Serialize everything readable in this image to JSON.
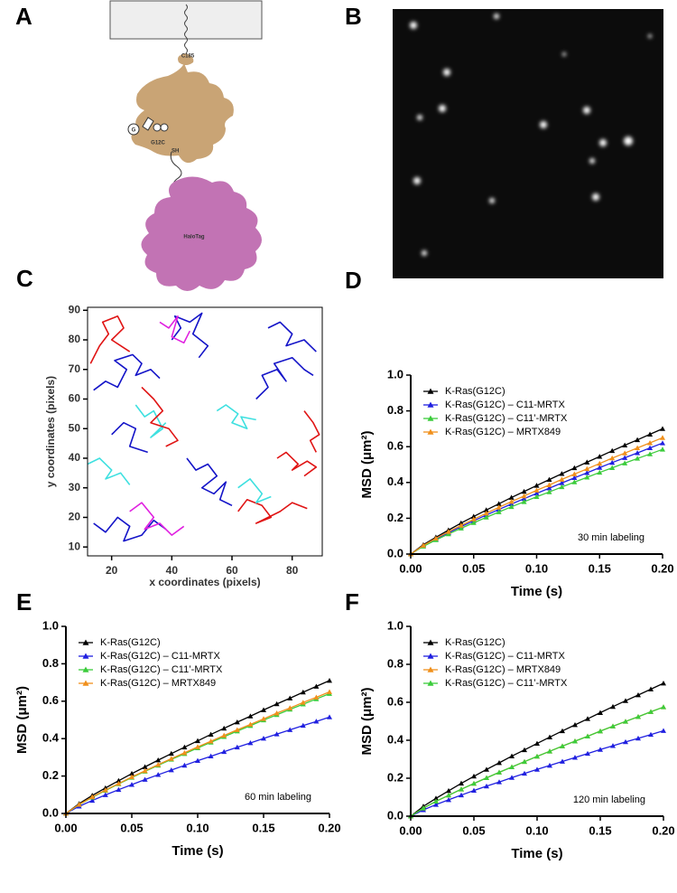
{
  "diagram": {
    "panel": "A",
    "anchor": "C185",
    "mutation": "G12C",
    "thiol": "SH",
    "ligand": "G",
    "tag": "HaloTag"
  },
  "image": {
    "panel": "B"
  },
  "chart_data": [
    {
      "type": "trajectories",
      "panel": "C",
      "xlabel": "x coordinates (pixels)",
      "ylabel": "y coordinates (pixels)",
      "xlim": [
        12,
        90
      ],
      "ylim": [
        7,
        91
      ],
      "xticks": [
        20,
        40,
        60,
        80
      ],
      "yticks": [
        10,
        20,
        30,
        40,
        50,
        60,
        70,
        80,
        90
      ],
      "series": [
        {
          "color": "#1414c8",
          "x": [
            14,
            18,
            22,
            25,
            21,
            27,
            30,
            28,
            33,
            36
          ],
          "y": [
            63,
            66,
            64,
            70,
            73,
            75,
            72,
            68,
            70,
            67
          ]
        },
        {
          "color": "#e01414",
          "x": [
            13,
            16,
            19,
            17,
            22,
            24,
            20,
            26
          ],
          "y": [
            72,
            78,
            82,
            86,
            88,
            84,
            80,
            76
          ]
        },
        {
          "color": "#1414c8",
          "x": [
            40,
            43,
            41,
            46,
            50,
            47,
            52,
            49
          ],
          "y": [
            80,
            84,
            88,
            86,
            89,
            82,
            78,
            74
          ]
        },
        {
          "color": "#3ee0e0",
          "x": [
            55,
            58,
            62,
            60,
            65,
            63,
            68
          ],
          "y": [
            56,
            58,
            55,
            52,
            50,
            54,
            53
          ]
        },
        {
          "color": "#1414c8",
          "x": [
            45,
            48,
            52,
            55,
            50,
            54,
            58,
            56,
            60
          ],
          "y": [
            40,
            36,
            38,
            34,
            30,
            28,
            32,
            26,
            24
          ]
        },
        {
          "color": "#e01414",
          "x": [
            75,
            78,
            82,
            80,
            85,
            88,
            84
          ],
          "y": [
            40,
            42,
            38,
            36,
            39,
            37,
            34
          ]
        },
        {
          "color": "#e020e0",
          "x": [
            36,
            39,
            42,
            40,
            44,
            46
          ],
          "y": [
            86,
            84,
            88,
            81,
            79,
            83
          ]
        },
        {
          "color": "#3ee0e0",
          "x": [
            12,
            16,
            20,
            18,
            23,
            26
          ],
          "y": [
            38,
            40,
            36,
            33,
            35,
            31
          ]
        },
        {
          "color": "#1414c8",
          "x": [
            14,
            18,
            22,
            26,
            24,
            30,
            34,
            38
          ],
          "y": [
            18,
            15,
            20,
            17,
            12,
            14,
            19,
            16
          ]
        },
        {
          "color": "#e01414",
          "x": [
            62,
            65,
            70,
            73,
            68,
            76,
            80,
            85
          ],
          "y": [
            22,
            26,
            24,
            20,
            18,
            22,
            25,
            23
          ]
        },
        {
          "color": "#e020e0",
          "x": [
            26,
            30,
            34,
            31,
            36,
            40,
            44
          ],
          "y": [
            22,
            25,
            20,
            16,
            18,
            14,
            17
          ]
        },
        {
          "color": "#1414c8",
          "x": [
            68,
            72,
            70,
            75,
            78,
            74,
            80,
            84,
            87
          ],
          "y": [
            60,
            64,
            68,
            70,
            66,
            72,
            74,
            70,
            68
          ]
        },
        {
          "color": "#3ee0e0",
          "x": [
            28,
            31,
            34,
            37,
            33,
            38
          ],
          "y": [
            58,
            54,
            56,
            50,
            47,
            52
          ]
        },
        {
          "color": "#e01414",
          "x": [
            30,
            34,
            37,
            33,
            39,
            42,
            38
          ],
          "y": [
            64,
            60,
            56,
            52,
            50,
            46,
            44
          ]
        },
        {
          "color": "#1414c8",
          "x": [
            72,
            76,
            80,
            78,
            84,
            88
          ],
          "y": [
            84,
            86,
            82,
            78,
            80,
            76
          ]
        },
        {
          "color": "#1414c8",
          "x": [
            20,
            24,
            28,
            26,
            32
          ],
          "y": [
            48,
            52,
            50,
            44,
            42
          ]
        },
        {
          "color": "#e01414",
          "x": [
            84,
            87,
            89,
            86,
            88
          ],
          "y": [
            56,
            52,
            48,
            46,
            42
          ]
        },
        {
          "color": "#3ee0e0",
          "x": [
            62,
            66,
            70,
            68,
            73
          ],
          "y": [
            30,
            33,
            28,
            25,
            27
          ]
        }
      ]
    },
    {
      "type": "line",
      "panel": "D",
      "annotation": "30 min labeling",
      "xlabel": "Time (s)",
      "ylabel": "MSD (μm²)",
      "xlim": [
        0,
        0.2
      ],
      "ylim": [
        0,
        1
      ],
      "xticks": [
        {
          "value": 0,
          "label": "0.00"
        },
        0.05,
        {
          "value": 0.1,
          "label": "0.10"
        },
        0.15,
        {
          "value": 0.2,
          "label": "0.20"
        }
      ],
      "yticks": [
        {
          "value": 0,
          "label": "0.0"
        },
        0.2,
        0.4,
        0.6,
        0.8,
        {
          "value": 1,
          "label": "1.0"
        }
      ],
      "x": [
        0,
        0.01,
        0.02,
        0.03,
        0.04,
        0.05,
        0.06,
        0.07,
        0.08,
        0.09,
        0.1,
        0.11,
        0.12,
        0.13,
        0.14,
        0.15,
        0.16,
        0.17,
        0.18,
        0.19,
        0.2
      ],
      "series": [
        {
          "name": "K-Ras(G12C)",
          "color": "#000000",
          "values": [
            0,
            0.052,
            0.094,
            0.134,
            0.173,
            0.21,
            0.246,
            0.281,
            0.316,
            0.349,
            0.383,
            0.416,
            0.449,
            0.481,
            0.513,
            0.545,
            0.577,
            0.608,
            0.638,
            0.669,
            0.7
          ]
        },
        {
          "name": "K-Ras(G12C) – C11-MRTX",
          "color": "#2020e0",
          "values": [
            0,
            0.046,
            0.084,
            0.119,
            0.153,
            0.186,
            0.218,
            0.249,
            0.28,
            0.309,
            0.339,
            0.368,
            0.397,
            0.426,
            0.454,
            0.483,
            0.511,
            0.538,
            0.565,
            0.593,
            0.62
          ]
        },
        {
          "name": "K-Ras(G12C) – C11’-MRTX",
          "color": "#3ccc3c",
          "values": [
            0,
            0.043,
            0.079,
            0.112,
            0.144,
            0.175,
            0.205,
            0.235,
            0.264,
            0.292,
            0.32,
            0.347,
            0.375,
            0.402,
            0.429,
            0.456,
            0.482,
            0.508,
            0.534,
            0.559,
            0.585
          ]
        },
        {
          "name": "K-Ras(G12C) – MRTX849",
          "color": "#f0901c",
          "values": [
            0,
            0.048,
            0.088,
            0.125,
            0.16,
            0.195,
            0.228,
            0.261,
            0.293,
            0.324,
            0.356,
            0.386,
            0.417,
            0.447,
            0.476,
            0.506,
            0.536,
            0.564,
            0.593,
            0.621,
            0.65
          ]
        }
      ]
    },
    {
      "type": "line",
      "panel": "E",
      "annotation": "60 min labeling",
      "xlabel": "Time (s)",
      "ylabel": "MSD (μm²)",
      "xlim": [
        0,
        0.2
      ],
      "ylim": [
        0,
        1
      ],
      "xticks": [
        {
          "value": 0,
          "label": "0.00"
        },
        0.05,
        {
          "value": 0.1,
          "label": "0.10"
        },
        0.15,
        {
          "value": 0.2,
          "label": "0.20"
        }
      ],
      "yticks": [
        {
          "value": 0,
          "label": "0.0"
        },
        0.2,
        0.4,
        0.6,
        0.8,
        {
          "value": 1,
          "label": "1.0"
        }
      ],
      "x": [
        0,
        0.01,
        0.02,
        0.03,
        0.04,
        0.05,
        0.06,
        0.07,
        0.08,
        0.09,
        0.1,
        0.11,
        0.12,
        0.13,
        0.14,
        0.15,
        0.16,
        0.17,
        0.18,
        0.19,
        0.2
      ],
      "series": [
        {
          "name": "K-Ras(G12C)",
          "color": "#000000",
          "values": [
            0,
            0.052,
            0.096,
            0.136,
            0.175,
            0.213,
            0.249,
            0.285,
            0.32,
            0.354,
            0.388,
            0.422,
            0.455,
            0.488,
            0.52,
            0.553,
            0.585,
            0.616,
            0.648,
            0.679,
            0.71
          ]
        },
        {
          "name": "K-Ras(G12C) – C11-MRTX",
          "color": "#2020e0",
          "values": [
            0,
            0.038,
            0.069,
            0.099,
            0.127,
            0.154,
            0.181,
            0.207,
            0.232,
            0.257,
            0.282,
            0.306,
            0.33,
            0.354,
            0.377,
            0.401,
            0.424,
            0.447,
            0.47,
            0.492,
            0.515
          ]
        },
        {
          "name": "K-Ras(G12C) – C11’-MRTX",
          "color": "#3ccc3c",
          "values": [
            0,
            0.047,
            0.086,
            0.123,
            0.158,
            0.192,
            0.225,
            0.257,
            0.289,
            0.319,
            0.35,
            0.38,
            0.41,
            0.44,
            0.469,
            0.499,
            0.527,
            0.556,
            0.584,
            0.612,
            0.64
          ]
        },
        {
          "name": "K-Ras(G12C) – MRTX849",
          "color": "#f0901c",
          "values": [
            0,
            0.048,
            0.088,
            0.125,
            0.16,
            0.195,
            0.228,
            0.261,
            0.293,
            0.324,
            0.356,
            0.386,
            0.417,
            0.447,
            0.476,
            0.506,
            0.536,
            0.564,
            0.593,
            0.621,
            0.65
          ]
        }
      ]
    },
    {
      "type": "line",
      "panel": "F",
      "annotation": "120 min labeling",
      "xlabel": "Time (s)",
      "ylabel": "MSD (μm²)",
      "xlim": [
        0,
        0.2
      ],
      "ylim": [
        0,
        1
      ],
      "xticks": [
        {
          "value": 0,
          "label": "0.00"
        },
        0.05,
        {
          "value": 0.1,
          "label": "0.10"
        },
        0.15,
        {
          "value": 0.2,
          "label": "0.20"
        }
      ],
      "yticks": [
        {
          "value": 0,
          "label": "0.0"
        },
        0.2,
        0.4,
        0.6,
        0.8,
        {
          "value": 1,
          "label": "1.0"
        }
      ],
      "x": [
        0,
        0.01,
        0.02,
        0.03,
        0.04,
        0.05,
        0.06,
        0.07,
        0.08,
        0.09,
        0.1,
        0.11,
        0.12,
        0.13,
        0.14,
        0.15,
        0.16,
        0.17,
        0.18,
        0.19,
        0.2
      ],
      "series": [
        {
          "name": "K-Ras(G12C)",
          "color": "#000000",
          "values": [
            0,
            0.052,
            0.094,
            0.134,
            0.173,
            0.21,
            0.246,
            0.281,
            0.316,
            0.349,
            0.383,
            0.416,
            0.449,
            0.481,
            0.513,
            0.545,
            0.577,
            0.608,
            0.638,
            0.669,
            0.7
          ]
        },
        {
          "name": "K-Ras(G12C) – C11-MRTX",
          "color": "#2020e0",
          "values": [
            0,
            0.033,
            0.061,
            0.086,
            0.111,
            0.135,
            0.158,
            0.18,
            0.203,
            0.225,
            0.246,
            0.267,
            0.288,
            0.309,
            0.33,
            0.351,
            0.371,
            0.391,
            0.41,
            0.43,
            0.45
          ]
        },
        {
          "name": "K-Ras(G12C) – MRTX849",
          "color": "#f0901c",
          "values": [
            0,
            0.042,
            0.078,
            0.11,
            0.142,
            0.172,
            0.202,
            0.231,
            0.259,
            0.287,
            0.315,
            0.342,
            0.369,
            0.395,
            0.421,
            0.448,
            0.474,
            0.499,
            0.524,
            0.55,
            0.575
          ]
        },
        {
          "name": "K-Ras(G12C) – C11’-MRTX",
          "color": "#3ccc3c",
          "values": [
            0,
            0.042,
            0.078,
            0.11,
            0.142,
            0.172,
            0.202,
            0.231,
            0.259,
            0.287,
            0.315,
            0.342,
            0.369,
            0.395,
            0.421,
            0.448,
            0.474,
            0.499,
            0.524,
            0.55,
            0.575
          ]
        }
      ]
    }
  ]
}
